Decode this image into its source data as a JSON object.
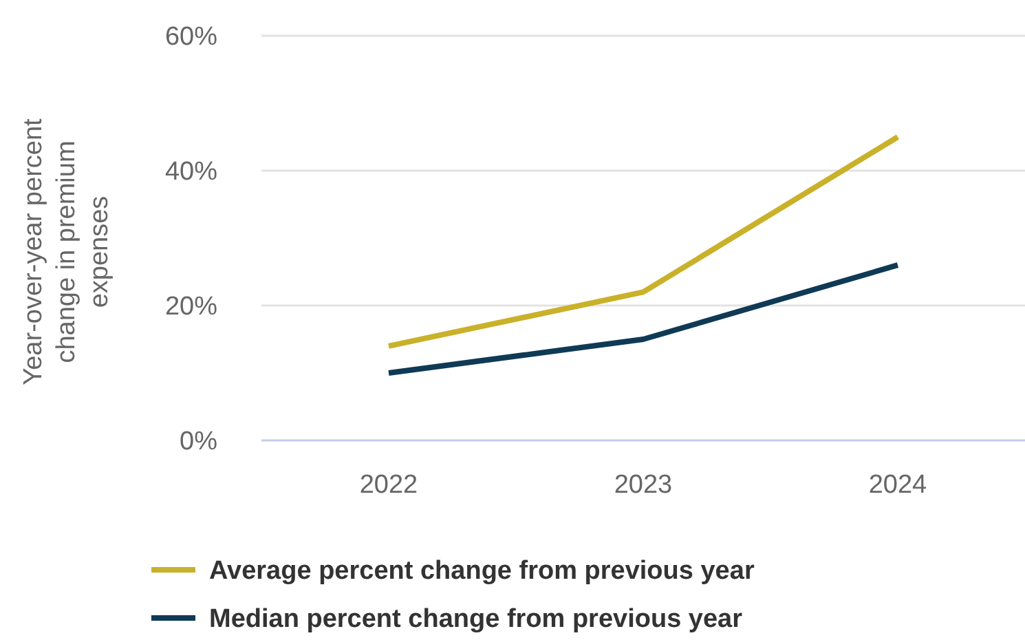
{
  "chart_data": {
    "type": "line",
    "ylabel": "Year-over-year percent change in premium expenses",
    "categories": [
      "2022",
      "2023",
      "2024"
    ],
    "series": [
      {
        "name": "Average percent change from previous year",
        "color": "#c9b12a",
        "values": [
          14,
          22,
          45
        ]
      },
      {
        "name": "Median percent change from previous year",
        "color": "#0f3a55",
        "values": [
          10,
          15,
          26
        ]
      }
    ],
    "ylim": [
      0,
      60
    ],
    "yticks": [
      {
        "value": 0,
        "label": "0%"
      },
      {
        "value": 20,
        "label": "20%"
      },
      {
        "value": 40,
        "label": "40%"
      },
      {
        "value": 60,
        "label": "60%"
      }
    ],
    "grid": "y",
    "legend": "bottom",
    "marker": "none",
    "line_style": "solid"
  }
}
